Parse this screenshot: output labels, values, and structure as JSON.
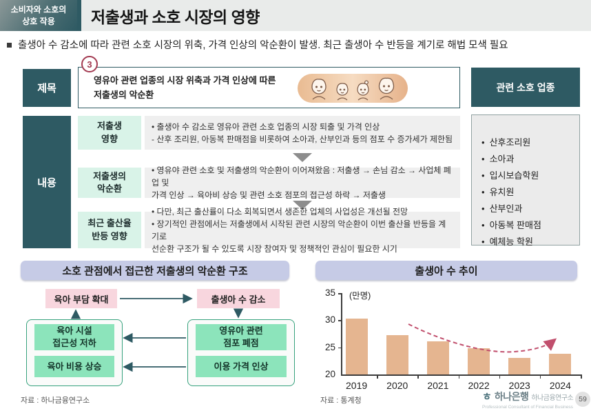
{
  "header": {
    "badge": "소비자와 소호의\n상호 작용",
    "title": "저출생과 소호 시장의 영향"
  },
  "summary": "출생아 수 감소에 따라 관련 소호 시장의 위축, 가격 인상의 악순환이 발생. 최근 출생아 수 반등을 계기로 해법 모색 필요",
  "table": {
    "row_header_title": "제목",
    "row_header_content": "내용",
    "annotation_number": "3",
    "title_text": "영유아 관련 업종의 시장 위축과 가격 인상에 따른\n저출생의 악순환",
    "rows": [
      {
        "label": "저출생\n영향",
        "text": "• 출생아 수 감소로 영유아 관련 소호 업종의 시장 퇴출 및 가격 인상\n   - 산후 조리원, 아동복 판매점을 비롯하여 소아과, 산부인과 등의 점포 수 증가세가 제한됨"
      },
      {
        "label": "저출생의\n악순환",
        "text": "• 영유야 관련 소호 및 저출생의 악순환이 이어져왔음 : 저출생 → 손님 감소 → 사업체 폐업 및\n   가격 인상 → 육아비 상승 및 관련 소호 점포의 접근성 하락 → 저출생"
      },
      {
        "label": "최근 출산율\n반등 영향",
        "text": "• 다만, 최근 출산률이 다소 회복되면서 생존한 업체의 사업성은 개선될 전망\n• 장기적인 관점에서는 저출생에서 시작된 관련 시장의 악순환이 이번 출산율 반등을 계기로\n   선순환 구조가 될 수 있도록 시장 참여자 및 정책적인 관심이 필요한 시기"
      }
    ]
  },
  "related_industries": {
    "header": "관련 소호 업종",
    "items": [
      "산후조리원",
      "소아과",
      "입시보습학원",
      "유치원",
      "산부인과",
      "아동복 판매점",
      "예체능 학원"
    ]
  },
  "cycle_diagram": {
    "title": "소호 관점에서 접근한 저출생의 악순환 구조",
    "node_parenting_burden": "육아 부담 확대",
    "node_births_decline": "출생아 수 감소",
    "left_nodes": [
      "육아 시설\n접근성 저하",
      "육아 비용 상승"
    ],
    "right_nodes": [
      "영유아 관련\n점포 폐점",
      "이용 가격 인상"
    ],
    "source": "자료 : 하나금융연구소"
  },
  "chart_data": {
    "type": "bar",
    "title": "출생아 수 추이",
    "unit_label": "(만명)",
    "categories": [
      "2019",
      "2020",
      "2021",
      "2022",
      "2023",
      "2024"
    ],
    "values": [
      30.3,
      27.2,
      26.1,
      24.9,
      23.0,
      23.8
    ],
    "ylim": [
      20,
      35
    ],
    "yticks": [
      35,
      30,
      25,
      20
    ],
    "grid": false,
    "legend": false,
    "bar_color": "#e5b590",
    "annotation": "점선 추세 화살표: 2020년 이후 하락 후 2024년 반등",
    "source": "자료 : 통계청"
  },
  "footer": {
    "bank_name": "하나은행",
    "institute": "하나금융연구소",
    "tagline": "Professional Consultant of Financial Business",
    "page_number": "59"
  },
  "colors": {
    "dark_teal": "#2e5a63",
    "mint": "#d9f3e8",
    "lavender": "#c6cbe6",
    "pink": "#f8d6de",
    "green": "#8ce4bb",
    "bar": "#e5b590",
    "crimson": "#a23950"
  }
}
